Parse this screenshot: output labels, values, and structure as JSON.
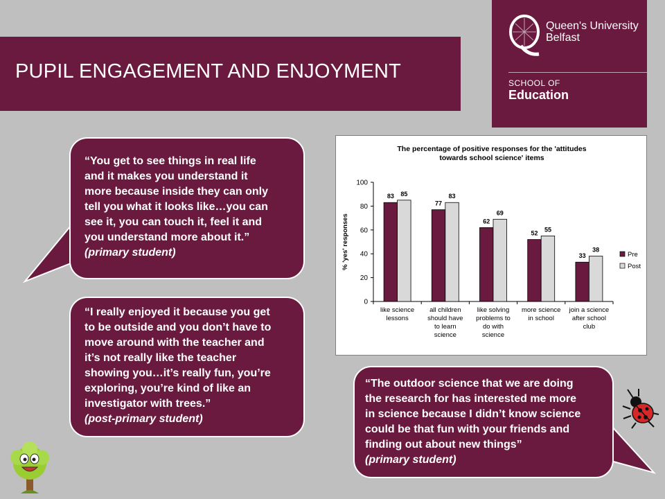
{
  "header": {
    "title": "PUPIL ENGAGEMENT AND ENJOYMENT"
  },
  "logo": {
    "line1": "Queen's University",
    "line2": "Belfast",
    "school_of": "SCHOOL OF",
    "school_name": "Education"
  },
  "quotes": [
    {
      "lines": [
        "“You get to see things in real life",
        "and it makes you understand it",
        "more because inside they can only",
        "tell you what it looks like…you can",
        "see it, you can touch it, feel it and",
        "you understand more about it.”"
      ],
      "attribution": "(primary student)"
    },
    {
      "lines": [
        "“I really enjoyed it because you get",
        "to be outside and you don’t have to",
        "move around with the teacher and",
        "it’s not really like the teacher",
        "showing you…it’s really fun, you’re",
        "exploring, you’re kind of like an",
        "investigator with trees.”"
      ],
      "attribution": "(post-primary student)"
    },
    {
      "lines": [
        "“The outdoor science that we are doing",
        "the research for has interested me more",
        "in science because I didn’t know science",
        "could be that fun with your friends and",
        "finding out about new things”"
      ],
      "attribution": "(primary student)"
    }
  ],
  "chart_data": {
    "type": "bar",
    "title_lines": [
      "The percentage  of positive responses for the 'attitudes",
      "towards school science' items"
    ],
    "ylabel": "% 'yes' responses",
    "ylim": [
      0,
      100
    ],
    "yticks": [
      0,
      20,
      40,
      60,
      80,
      100
    ],
    "categories": [
      [
        "like science",
        "lessons"
      ],
      [
        "all children",
        "should have",
        "to learn",
        "science"
      ],
      [
        "like solving",
        "problems to",
        "do with",
        "science"
      ],
      [
        "more science",
        "in school"
      ],
      [
        "join a science",
        "after school",
        "club"
      ]
    ],
    "series": [
      {
        "name": "Pre",
        "values": [
          83,
          77,
          62,
          52,
          33
        ],
        "color": "#6b1a3f"
      },
      {
        "name": "Post",
        "values": [
          85,
          83,
          69,
          55,
          38
        ],
        "color": "#d9d9d9"
      }
    ],
    "legend_position": "right",
    "grid": false
  },
  "colors": {
    "accent": "#6b1a3f",
    "background": "#bfbfbf"
  },
  "decorations": {
    "tree": "tree-mascot-icon",
    "ladybird": "ladybird-icon"
  }
}
